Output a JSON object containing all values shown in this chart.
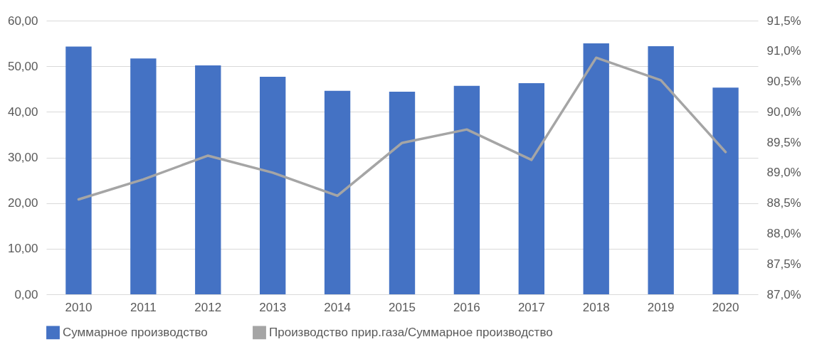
{
  "chart_data": {
    "type": "bar",
    "categories": [
      "2010",
      "2011",
      "2012",
      "2013",
      "2014",
      "2015",
      "2016",
      "2017",
      "2018",
      "2019",
      "2020"
    ],
    "series": [
      {
        "name": "Суммарное производство",
        "color": "#4472c4",
        "values": [
          54.3,
          51.7,
          50.2,
          47.7,
          44.6,
          44.4,
          45.7,
          46.3,
          55.0,
          54.4,
          45.3
        ]
      },
      {
        "name": "Производство прир.газа/Суммарное производство",
        "type": "line",
        "axis": "y2",
        "color": "#a5a5a5",
        "values": [
          88.56,
          88.89,
          89.28,
          89.0,
          88.62,
          89.49,
          89.71,
          89.21,
          90.89,
          90.52,
          89.34
        ]
      }
    ],
    "ylim": [
      0,
      60
    ],
    "yticks": [
      {
        "value": 0,
        "label": "0,00"
      },
      {
        "value": 10,
        "label": "10,00"
      },
      {
        "value": 20,
        "label": "20,00"
      },
      {
        "value": 30,
        "label": "30,00"
      },
      {
        "value": 40,
        "label": "40,00"
      },
      {
        "value": 50,
        "label": "50,00"
      },
      {
        "value": 60,
        "label": "60,00"
      }
    ],
    "y2lim": [
      87,
      91.5
    ],
    "y2ticks": [
      {
        "value": 87,
        "label": "87,0%"
      },
      {
        "value": 87.5,
        "label": "87,5%"
      },
      {
        "value": 88,
        "label": "88,0%"
      },
      {
        "value": 88.5,
        "label": "88,5%"
      },
      {
        "value": 89,
        "label": "89,0%"
      },
      {
        "value": 89.5,
        "label": "89,5%"
      },
      {
        "value": 90,
        "label": "90,0%"
      },
      {
        "value": 90.5,
        "label": "90,5%"
      },
      {
        "value": 91,
        "label": "91,0%"
      },
      {
        "value": 91.5,
        "label": "91,5%"
      }
    ],
    "grid": "y",
    "legend": "bottom"
  }
}
